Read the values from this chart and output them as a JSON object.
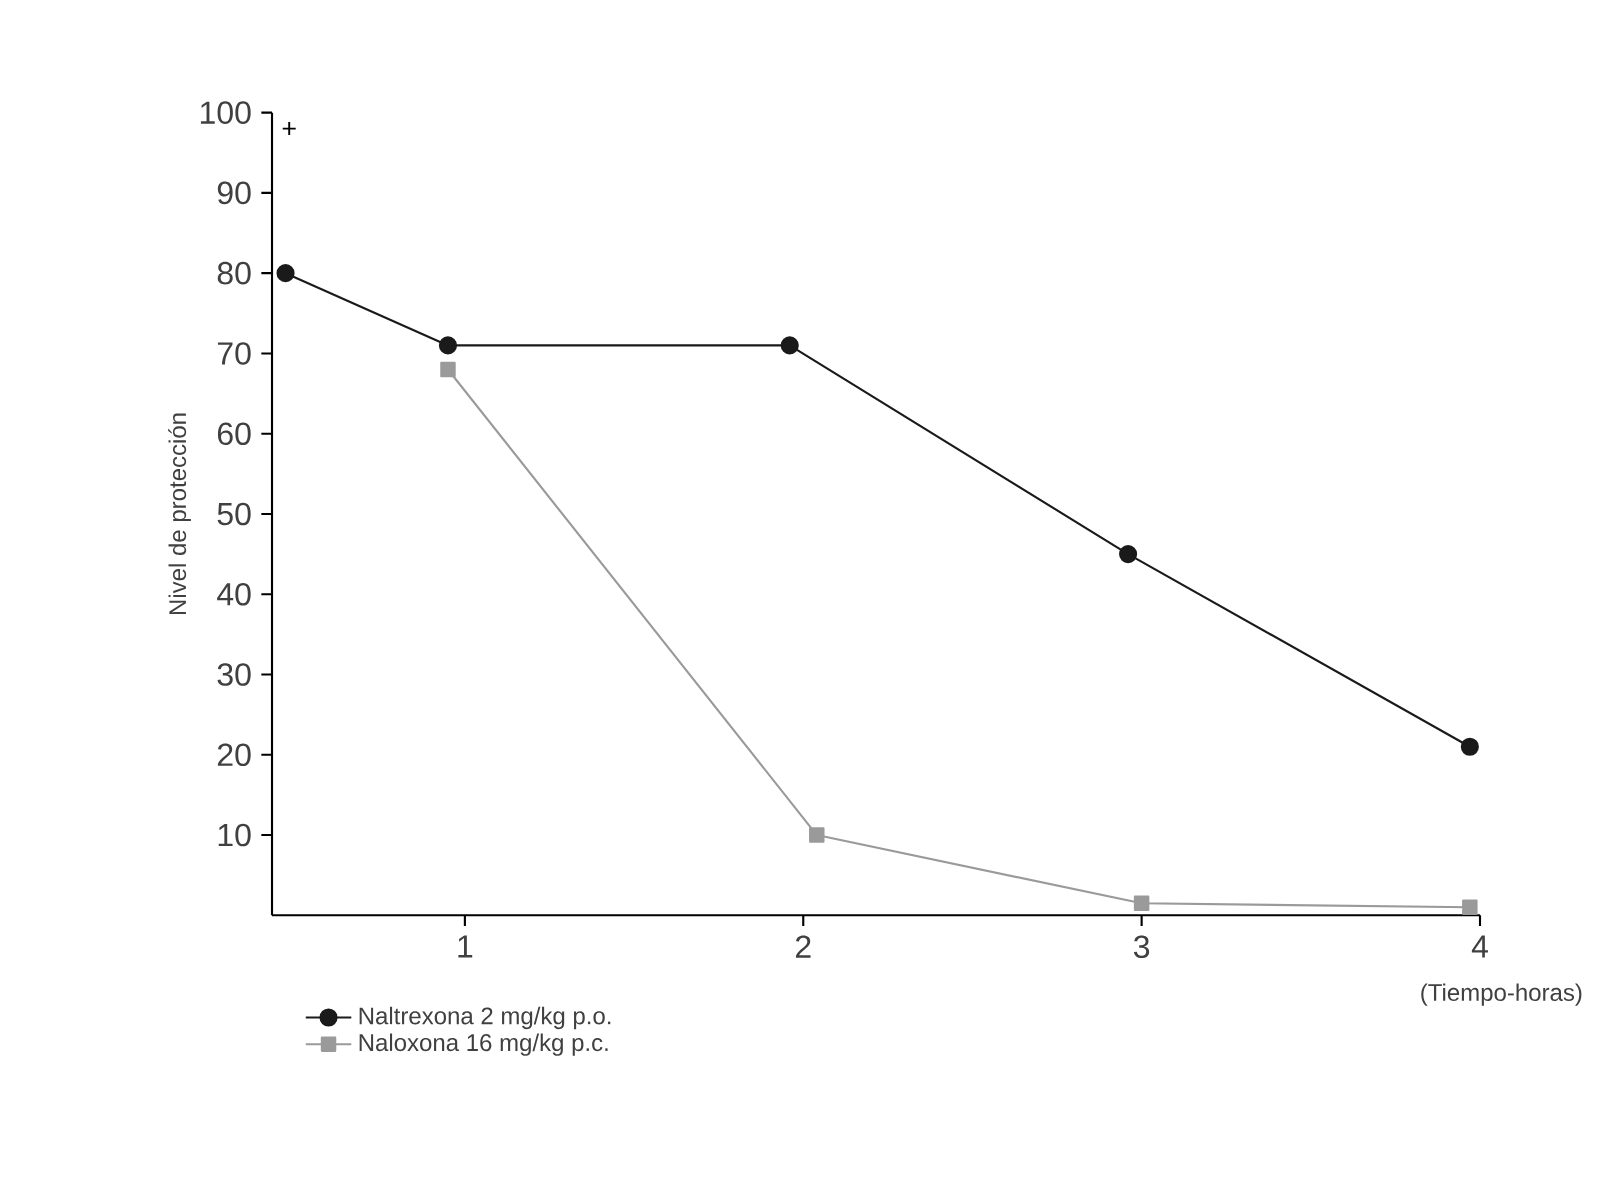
{
  "chart_data": {
    "type": "line",
    "ylabel": "Nivel de protección",
    "xlabel": "(Tiempo-horas)",
    "xlim": [
      0.43,
      4
    ],
    "xticks": [
      1,
      2,
      3,
      4
    ],
    "ylim": [
      0,
      100
    ],
    "yticks": [
      10,
      20,
      30,
      40,
      50,
      60,
      70,
      80,
      90,
      100
    ],
    "legend": "bottom left",
    "grid": false,
    "series": [
      {
        "name": "Naltrexona 2 mg/kg p.o.",
        "color": "#1a1a1a",
        "marker": "circle",
        "x": [
          0.47,
          0.95,
          1.96,
          2.96,
          3.97
        ],
        "values": [
          80,
          71,
          71,
          45,
          21
        ]
      },
      {
        "name": "Naloxona 16 mg/kg p.c.",
        "color": "#9a9a9a",
        "marker": "square",
        "x": [
          0.95,
          2.04,
          3.0,
          3.97
        ],
        "values": [
          68,
          10,
          1.5,
          1
        ]
      }
    ],
    "annotations": [
      "+"
    ]
  }
}
